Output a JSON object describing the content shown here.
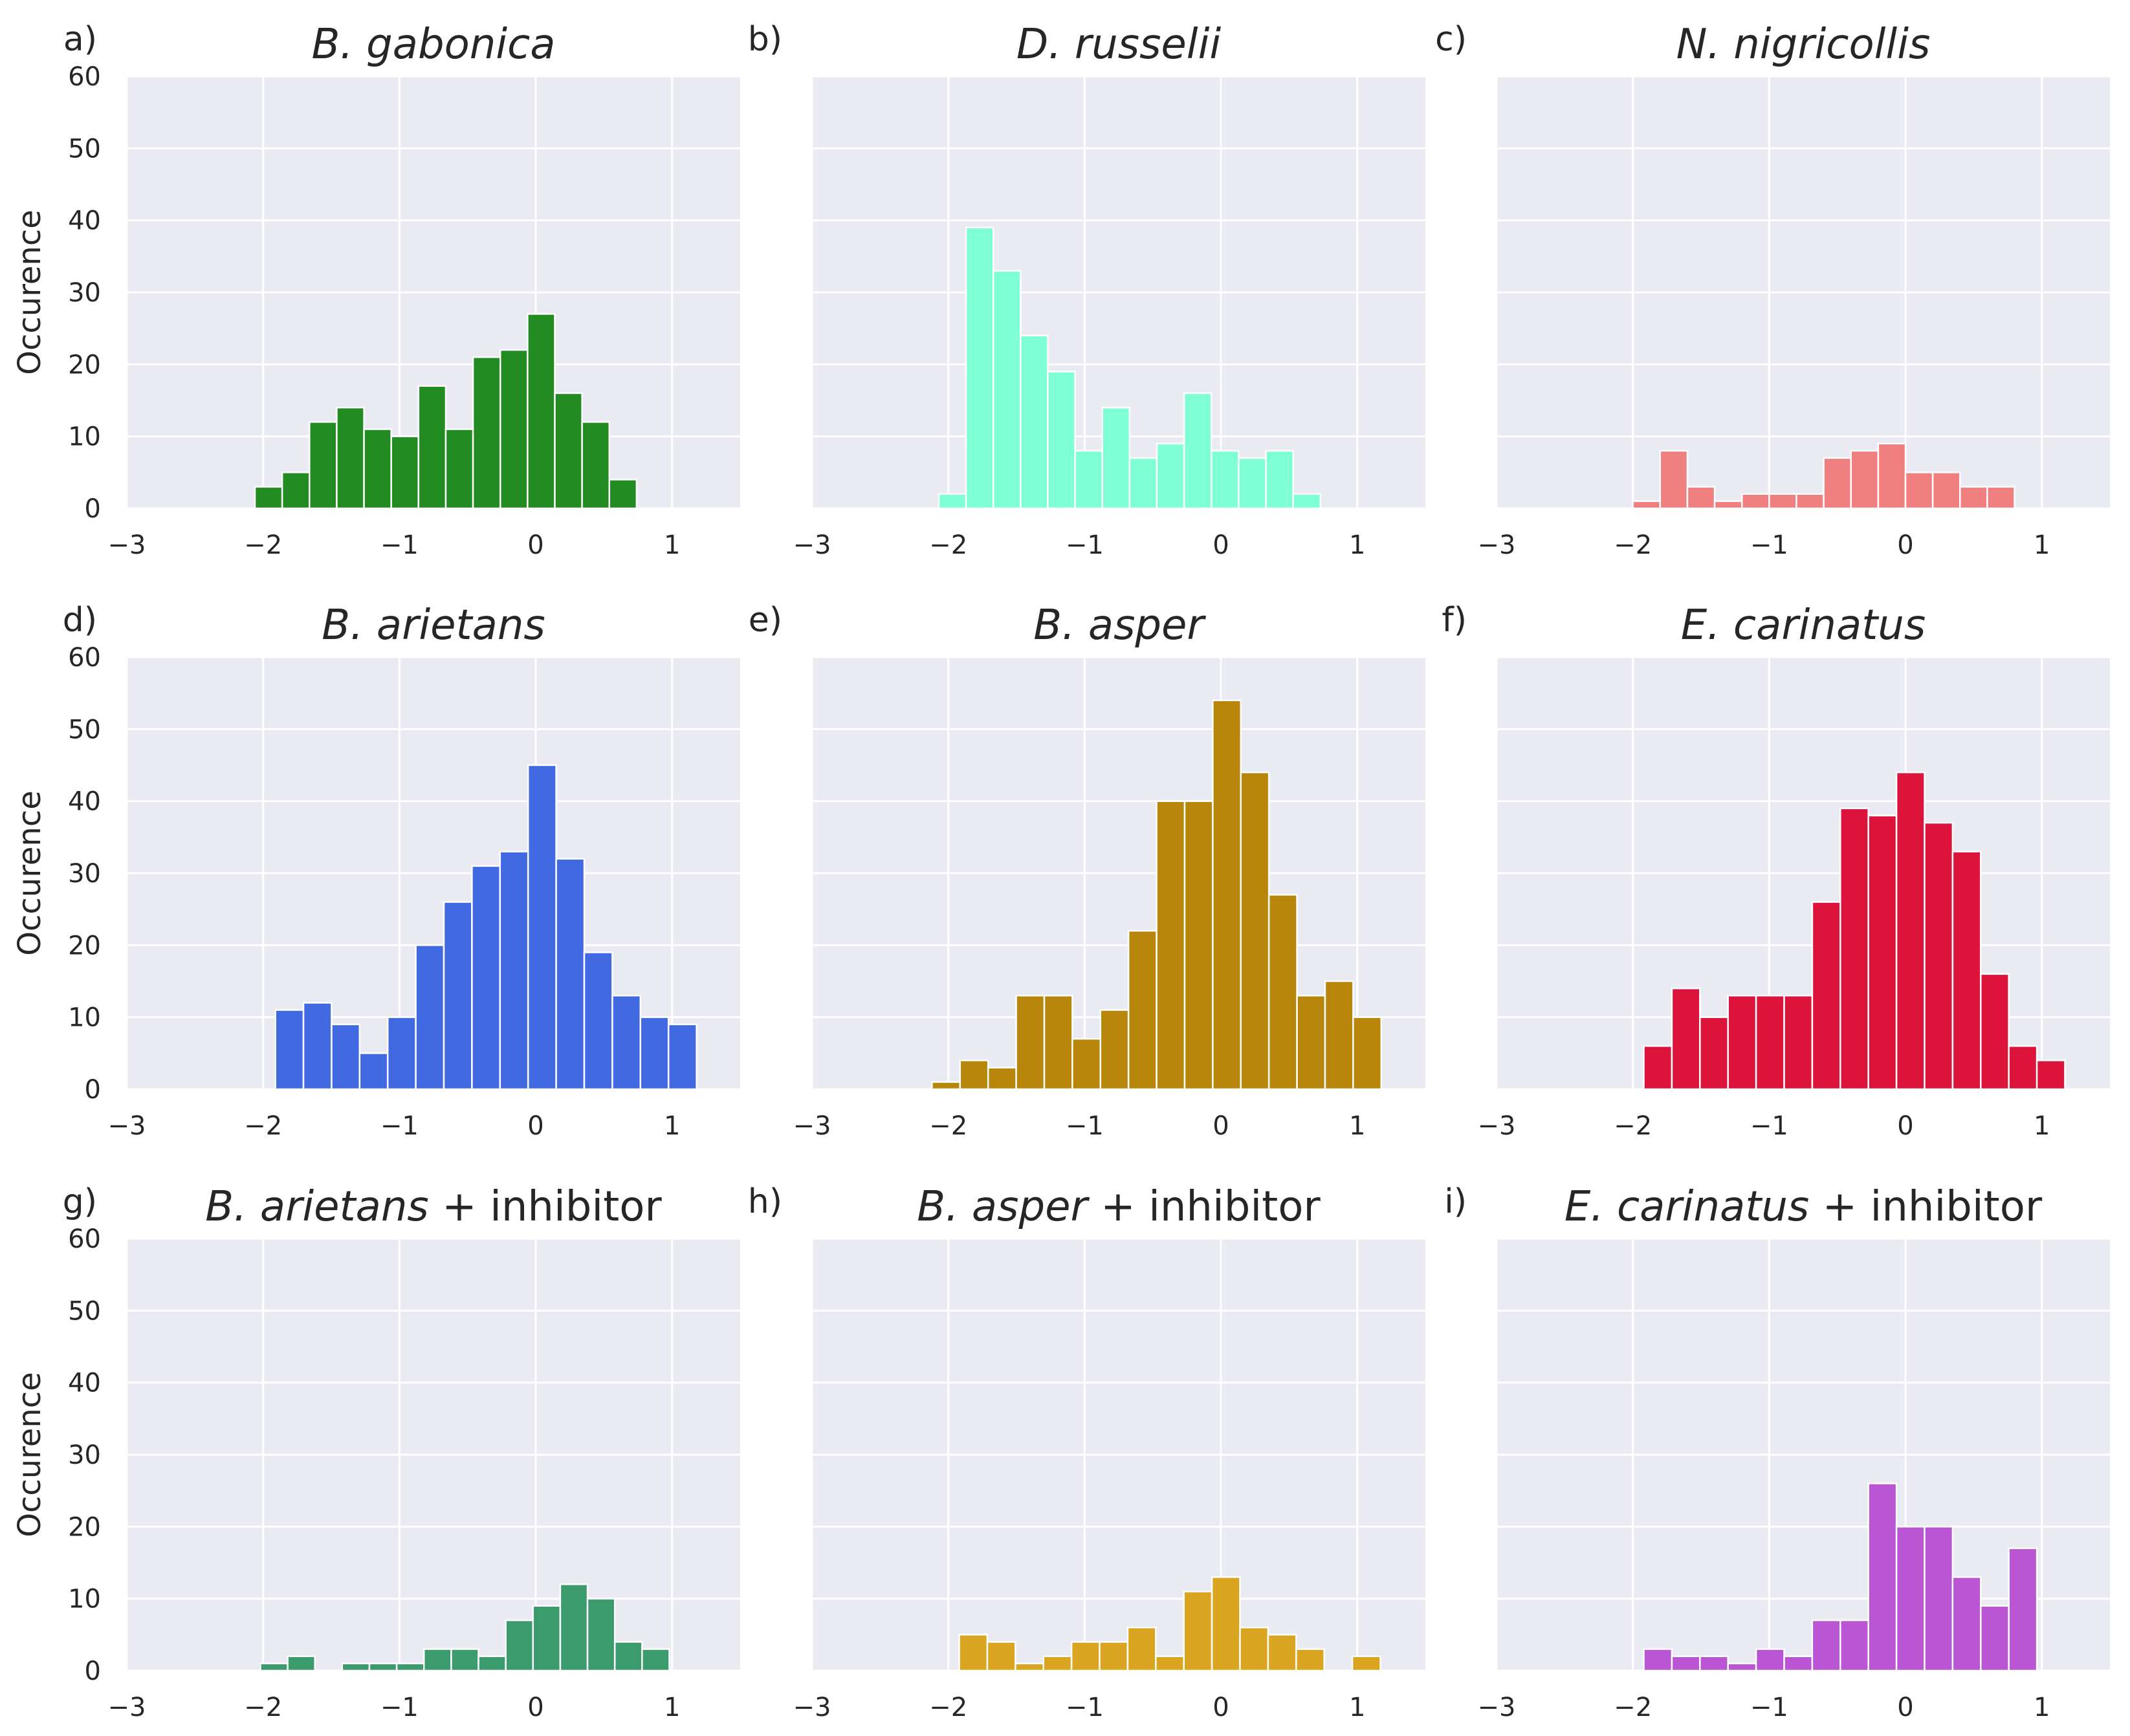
{
  "figure": {
    "ylabel": "Occurence",
    "xlim": [
      -3,
      1.5
    ],
    "ylim": [
      0,
      60
    ],
    "xticks": [
      -3,
      -2,
      -1,
      0,
      1
    ],
    "xtick_labels": [
      "−3",
      "−2",
      "−1",
      "0",
      "1"
    ],
    "yticks": [
      0,
      10,
      20,
      30,
      40,
      50,
      60
    ],
    "ytick_labels": [
      "0",
      "10",
      "20",
      "30",
      "40",
      "50",
      "60"
    ],
    "background": "#eaeaf2",
    "grid_color": "#ffffff"
  },
  "chart_data": [
    {
      "type": "bar",
      "panel": "a)",
      "title": "B. gabonica",
      "title_suffix": "",
      "color": "#228b22",
      "bin_width": 0.2,
      "bin_start": -2.06,
      "values": [
        3,
        5,
        12,
        14,
        11,
        10,
        17,
        11,
        21,
        22,
        27,
        16,
        12,
        4
      ],
      "xlabel": "",
      "ylabel": "Occurence",
      "xlim": [
        -3,
        1.5
      ],
      "ylim": [
        0,
        60
      ]
    },
    {
      "type": "bar",
      "panel": "b)",
      "title": "D. russelii",
      "title_suffix": "",
      "color": "#7fffd4",
      "bin_width": 0.2,
      "bin_start": -2.07,
      "values": [
        2,
        39,
        33,
        24,
        19,
        8,
        14,
        7,
        9,
        16,
        8,
        7,
        8,
        2
      ],
      "xlabel": "",
      "ylabel": "",
      "xlim": [
        -3,
        1.5
      ],
      "ylim": [
        0,
        60
      ]
    },
    {
      "type": "bar",
      "panel": "c)",
      "title": "N. nigricollis",
      "title_suffix": "",
      "color": "#f08080",
      "bin_width": 0.2,
      "bin_start": -2.0,
      "values": [
        1,
        8,
        3,
        1,
        2,
        2,
        2,
        7,
        8,
        9,
        5,
        5,
        3,
        3
      ],
      "xlabel": "",
      "ylabel": "",
      "xlim": [
        -3,
        1.5
      ],
      "ylim": [
        0,
        60
      ]
    },
    {
      "type": "bar",
      "panel": "d)",
      "title": "B. arietans",
      "title_suffix": "",
      "color": "#4169e1",
      "bin_width": 0.206,
      "bin_start": -1.91,
      "values": [
        11,
        12,
        9,
        5,
        10,
        20,
        26,
        31,
        33,
        45,
        32,
        19,
        13,
        10,
        9
      ],
      "xlabel": "",
      "ylabel": "Occurence",
      "xlim": [
        -3,
        1.5
      ],
      "ylim": [
        0,
        60
      ]
    },
    {
      "type": "bar",
      "panel": "e)",
      "title": "B. asper",
      "title_suffix": "",
      "color": "#b8860b",
      "bin_width": 0.206,
      "bin_start": -2.12,
      "values": [
        1,
        4,
        3,
        13,
        13,
        7,
        11,
        22,
        40,
        40,
        54,
        44,
        27,
        13,
        15,
        10
      ],
      "xlabel": "",
      "ylabel": "",
      "xlim": [
        -3,
        1.5
      ],
      "ylim": [
        0,
        60
      ]
    },
    {
      "type": "bar",
      "panel": "f)",
      "title": "E. carinatus",
      "title_suffix": "",
      "color": "#dc143c",
      "bin_width": 0.206,
      "bin_start": -1.92,
      "values": [
        6,
        14,
        10,
        13,
        13,
        13,
        26,
        39,
        38,
        44,
        37,
        33,
        16,
        6,
        4
      ],
      "xlabel": "",
      "ylabel": "",
      "xlim": [
        -3,
        1.5
      ],
      "ylim": [
        0,
        60
      ]
    },
    {
      "type": "bar",
      "panel": "g)",
      "title": "B. arietans",
      "title_suffix": " + inhibitor",
      "color": "#3b9b6d",
      "bin_width": 0.2,
      "bin_start": -2.02,
      "values": [
        1,
        2,
        0,
        1,
        1,
        1,
        3,
        3,
        2,
        7,
        9,
        12,
        10,
        4,
        3
      ],
      "xlabel": "",
      "ylabel": "Occurence",
      "xlim": [
        -3,
        1.5
      ],
      "ylim": [
        0,
        60
      ]
    },
    {
      "type": "bar",
      "panel": "h)",
      "title": "B. asper",
      "title_suffix": " + inhibitor",
      "color": "#daa520",
      "bin_width": 0.206,
      "bin_start": -1.92,
      "values": [
        5,
        4,
        1,
        2,
        4,
        4,
        6,
        2,
        11,
        13,
        6,
        5,
        3,
        0,
        2
      ],
      "xlabel": "",
      "ylabel": "",
      "xlim": [
        -3,
        1.5
      ],
      "ylim": [
        0,
        60
      ]
    },
    {
      "type": "bar",
      "panel": "i)",
      "title": "E. carinatus",
      "title_suffix": " + inhibitor",
      "color": "#ba55d3",
      "bin_width": 0.206,
      "bin_start": -1.92,
      "values": [
        3,
        2,
        2,
        1,
        3,
        2,
        7,
        7,
        26,
        20,
        20,
        13,
        9,
        17
      ],
      "xlabel": "",
      "ylabel": "",
      "xlim": [
        -3,
        1.5
      ],
      "ylim": [
        0,
        60
      ]
    }
  ]
}
